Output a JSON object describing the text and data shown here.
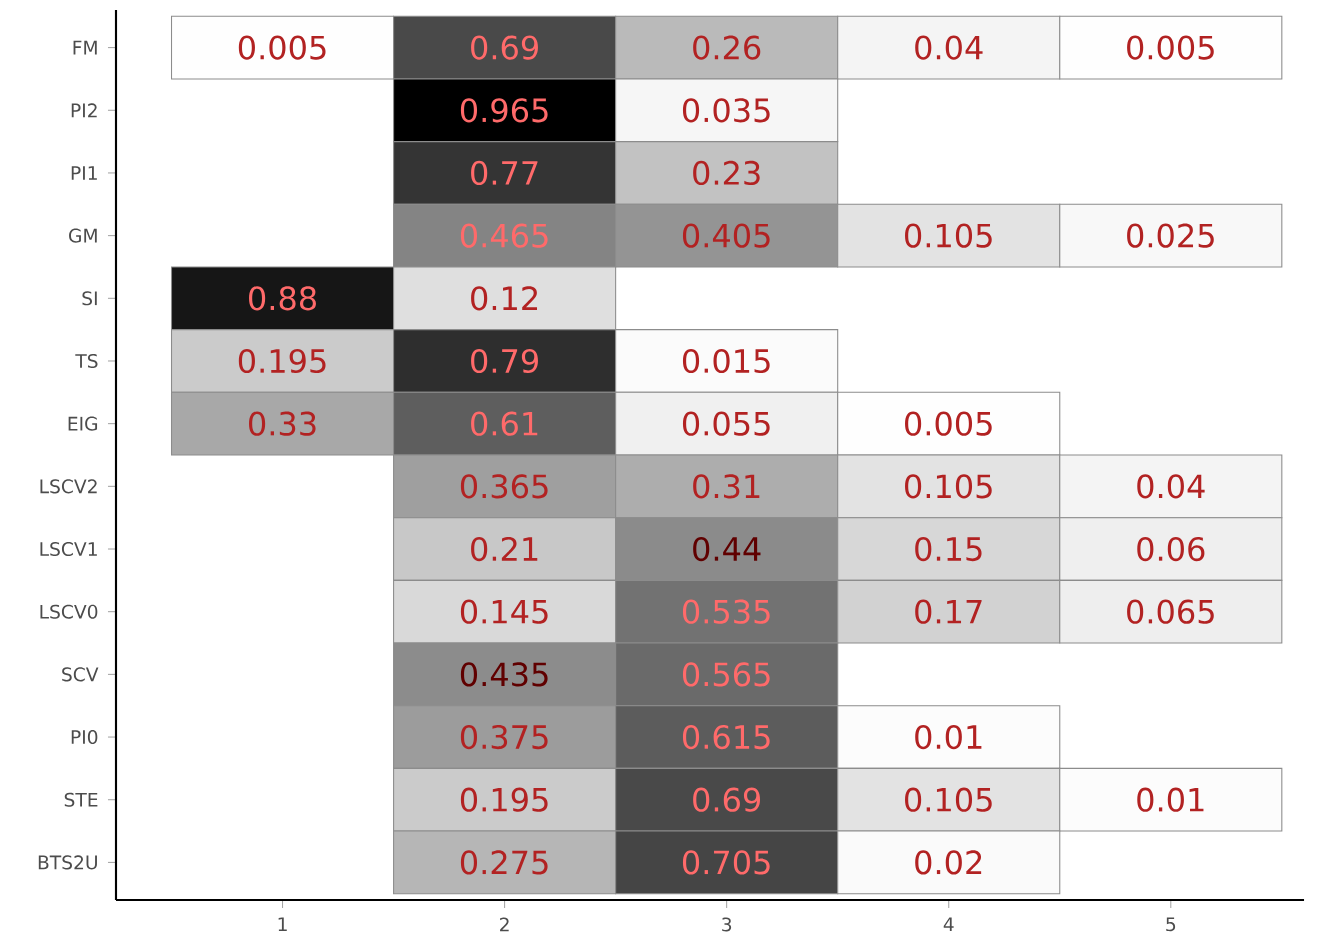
{
  "chart_data": {
    "type": "heatmap",
    "categories": [
      "1",
      "2",
      "3",
      "4",
      "5"
    ],
    "y_categories": [
      "FM",
      "PI2",
      "PI1",
      "GM",
      "SI",
      "TS",
      "EIG",
      "LSCV2",
      "LSCV1",
      "LSCV0",
      "SCV",
      "PI0",
      "STE",
      "BTS2U"
    ],
    "cells": [
      [
        0.005,
        0.69,
        0.26,
        0.04,
        0.005
      ],
      [
        null,
        0.965,
        0.035,
        null,
        null
      ],
      [
        null,
        0.77,
        0.23,
        null,
        null
      ],
      [
        null,
        0.465,
        0.405,
        0.105,
        0.025
      ],
      [
        0.88,
        0.12,
        null,
        null,
        null
      ],
      [
        0.195,
        0.79,
        0.015,
        null,
        null
      ],
      [
        0.33,
        0.61,
        0.055,
        0.005,
        null
      ],
      [
        null,
        0.365,
        0.31,
        0.105,
        0.04
      ],
      [
        null,
        0.21,
        0.44,
        0.15,
        0.06
      ],
      [
        null,
        0.145,
        0.535,
        0.17,
        0.065
      ],
      [
        null,
        0.435,
        0.565,
        null,
        null
      ],
      [
        null,
        0.375,
        0.615,
        0.01,
        null
      ],
      [
        null,
        0.195,
        0.69,
        0.105,
        0.01
      ],
      [
        null,
        0.275,
        0.705,
        0.02,
        null
      ]
    ],
    "data_labels": true
  }
}
